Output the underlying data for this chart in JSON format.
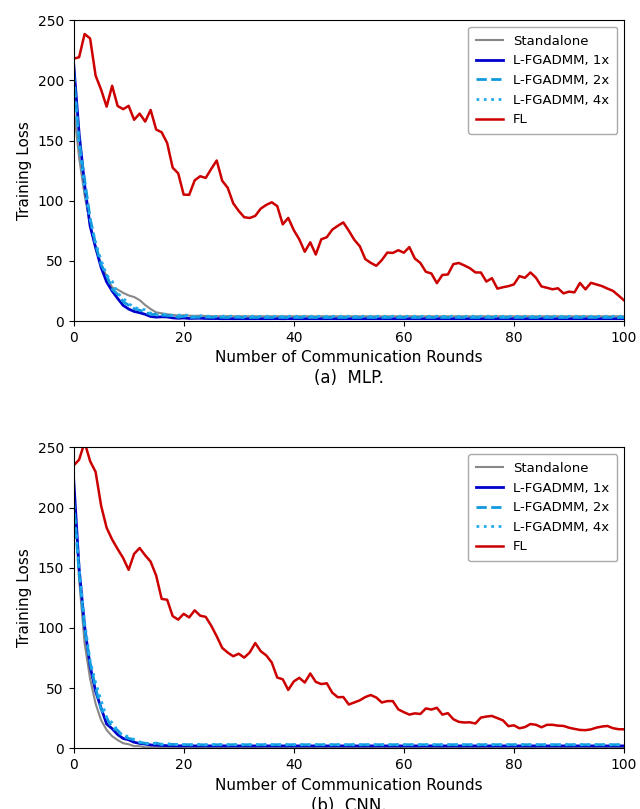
{
  "title_a": "(a)  MLP.",
  "title_b": "(b)  CNN.",
  "xlabel": "Number of Communication Rounds",
  "ylabel": "Training Loss",
  "xlim": [
    0,
    100
  ],
  "ylim_a": [
    0,
    250
  ],
  "ylim_b": [
    0,
    250
  ],
  "yticks_a": [
    0,
    50,
    100,
    150,
    200,
    250
  ],
  "yticks_b": [
    0,
    50,
    100,
    150,
    200,
    250
  ],
  "xticks": [
    0,
    20,
    40,
    60,
    80,
    100
  ],
  "legend_labels": [
    "Standalone",
    "L-FGADMM, 1x",
    "L-FGADMM, 2x",
    "L-FGADMM, 4x",
    "FL"
  ],
  "colors": {
    "standalone": "#888888",
    "lfgadmm_1x": "#0000CC",
    "lfgadmm_2x": "#1199DD",
    "lfgadmm_4x": "#22AAEE",
    "fl": "#CC0000"
  },
  "linestyles": {
    "standalone": "solid",
    "lfgadmm_1x": "solid",
    "lfgadmm_2x": "dashed",
    "lfgadmm_4x": "dotted",
    "fl": "solid"
  },
  "linewidths": {
    "standalone": 1.5,
    "lfgadmm_1x": 2.0,
    "lfgadmm_2x": 2.0,
    "lfgadmm_4x": 2.0,
    "fl": 1.8
  }
}
